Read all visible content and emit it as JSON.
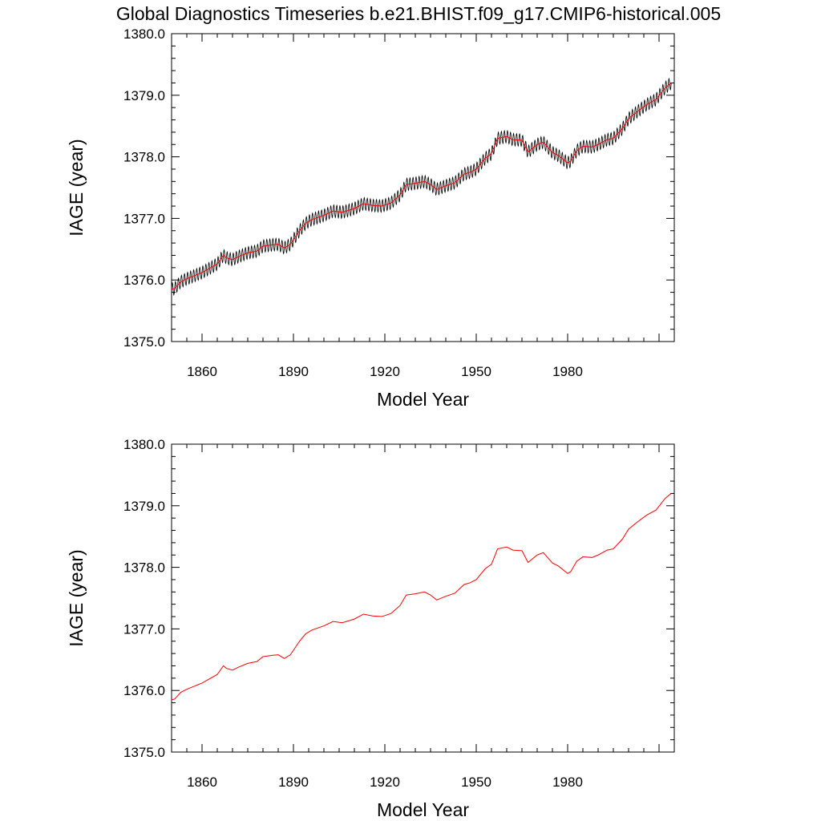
{
  "figure_title": "Global Diagnostics Timeseries b.e21.BHIST.f09_g17.CMIP6-historical.005",
  "colors": {
    "monthly": "#000000",
    "annual": "#ff0000",
    "axis": "#000000"
  },
  "chart_data": [
    {
      "type": "line",
      "panel": "top",
      "title": "",
      "xlabel": "Model Year",
      "ylabel": "IAGE (year)",
      "xlim": [
        1850,
        2015
      ],
      "ylim": [
        1375.0,
        1380.0
      ],
      "x_ticks": [
        1860,
        1890,
        1920,
        1950,
        1980
      ],
      "y_ticks": [
        "1375.0",
        "1376.0",
        "1377.0",
        "1378.0",
        "1379.0",
        "1380.0"
      ],
      "grid": false,
      "series": [
        {
          "style": "monthly",
          "color": "#000000",
          "seasonal_amplitude": 0.1,
          "x": [
            1850,
            1851,
            1853,
            1855,
            1860,
            1865,
            1867,
            1868,
            1870,
            1872,
            1875,
            1878,
            1880,
            1883,
            1885,
            1887,
            1889,
            1892,
            1894,
            1896,
            1900,
            1903,
            1906,
            1910,
            1913,
            1916,
            1919,
            1922,
            1925,
            1927,
            1930,
            1933,
            1935,
            1937,
            1940,
            1943,
            1946,
            1948,
            1950,
            1953,
            1955,
            1957,
            1960,
            1962,
            1965,
            1967,
            1970,
            1972,
            1975,
            1977,
            1980,
            1981,
            1983,
            1985,
            1988,
            1990,
            1993,
            1995,
            1998,
            2000,
            2003,
            2006,
            2009,
            2012,
            2014
          ],
          "y": [
            1375.85,
            1375.86,
            1375.97,
            1376.02,
            1376.12,
            1376.26,
            1376.4,
            1376.36,
            1376.33,
            1376.38,
            1376.44,
            1376.47,
            1376.55,
            1376.57,
            1376.58,
            1376.52,
            1376.58,
            1376.8,
            1376.92,
            1376.98,
            1377.05,
            1377.12,
            1377.1,
            1377.16,
            1377.24,
            1377.21,
            1377.2,
            1377.25,
            1377.38,
            1377.55,
            1377.57,
            1377.6,
            1377.55,
            1377.47,
            1377.53,
            1377.58,
            1377.72,
            1377.75,
            1377.8,
            1377.98,
            1378.05,
            1378.3,
            1378.33,
            1378.28,
            1378.27,
            1378.08,
            1378.2,
            1378.24,
            1378.07,
            1378.02,
            1377.9,
            1377.93,
            1378.1,
            1378.17,
            1378.16,
            1378.2,
            1378.28,
            1378.3,
            1378.46,
            1378.62,
            1378.74,
            1378.85,
            1378.93,
            1379.12,
            1379.2
          ]
        },
        {
          "style": "annual",
          "color": "#ff0000",
          "x": [
            1850,
            1851,
            1853,
            1855,
            1860,
            1865,
            1867,
            1868,
            1870,
            1872,
            1875,
            1878,
            1880,
            1883,
            1885,
            1887,
            1889,
            1892,
            1894,
            1896,
            1900,
            1903,
            1906,
            1910,
            1913,
            1916,
            1919,
            1922,
            1925,
            1927,
            1930,
            1933,
            1935,
            1937,
            1940,
            1943,
            1946,
            1948,
            1950,
            1953,
            1955,
            1957,
            1960,
            1962,
            1965,
            1967,
            1970,
            1972,
            1975,
            1977,
            1980,
            1981,
            1983,
            1985,
            1988,
            1990,
            1993,
            1995,
            1998,
            2000,
            2003,
            2006,
            2009,
            2012,
            2014
          ],
          "y": [
            1375.85,
            1375.86,
            1375.97,
            1376.02,
            1376.12,
            1376.26,
            1376.4,
            1376.36,
            1376.33,
            1376.38,
            1376.44,
            1376.47,
            1376.55,
            1376.57,
            1376.58,
            1376.52,
            1376.58,
            1376.8,
            1376.92,
            1376.98,
            1377.05,
            1377.12,
            1377.1,
            1377.16,
            1377.24,
            1377.21,
            1377.2,
            1377.25,
            1377.38,
            1377.55,
            1377.57,
            1377.6,
            1377.55,
            1377.47,
            1377.53,
            1377.58,
            1377.72,
            1377.75,
            1377.8,
            1377.98,
            1378.05,
            1378.3,
            1378.33,
            1378.28,
            1378.27,
            1378.08,
            1378.2,
            1378.24,
            1378.07,
            1378.02,
            1377.9,
            1377.93,
            1378.1,
            1378.17,
            1378.16,
            1378.2,
            1378.28,
            1378.3,
            1378.46,
            1378.62,
            1378.74,
            1378.85,
            1378.93,
            1379.12,
            1379.2
          ]
        }
      ]
    },
    {
      "type": "line",
      "panel": "bottom",
      "title": "",
      "xlabel": "Model Year",
      "ylabel": "IAGE (year)",
      "xlim": [
        1850,
        2015
      ],
      "ylim": [
        1375.0,
        1380.0
      ],
      "x_ticks": [
        1860,
        1890,
        1920,
        1950,
        1980
      ],
      "y_ticks": [
        "1375.0",
        "1376.0",
        "1377.0",
        "1378.0",
        "1379.0",
        "1380.0"
      ],
      "grid": false,
      "series": [
        {
          "style": "annual",
          "color": "#ff0000",
          "x": [
            1850,
            1851,
            1853,
            1855,
            1860,
            1865,
            1867,
            1868,
            1870,
            1872,
            1875,
            1878,
            1880,
            1883,
            1885,
            1887,
            1889,
            1892,
            1894,
            1896,
            1900,
            1903,
            1906,
            1910,
            1913,
            1916,
            1919,
            1922,
            1925,
            1927,
            1930,
            1933,
            1935,
            1937,
            1940,
            1943,
            1946,
            1948,
            1950,
            1953,
            1955,
            1957,
            1960,
            1962,
            1965,
            1967,
            1970,
            1972,
            1975,
            1977,
            1980,
            1981,
            1983,
            1985,
            1988,
            1990,
            1993,
            1995,
            1998,
            2000,
            2003,
            2006,
            2009,
            2012,
            2014
          ],
          "y": [
            1375.85,
            1375.86,
            1375.97,
            1376.02,
            1376.12,
            1376.26,
            1376.4,
            1376.36,
            1376.33,
            1376.38,
            1376.44,
            1376.47,
            1376.55,
            1376.57,
            1376.58,
            1376.52,
            1376.58,
            1376.8,
            1376.92,
            1376.98,
            1377.05,
            1377.12,
            1377.1,
            1377.16,
            1377.24,
            1377.21,
            1377.2,
            1377.25,
            1377.38,
            1377.55,
            1377.57,
            1377.6,
            1377.55,
            1377.47,
            1377.53,
            1377.58,
            1377.72,
            1377.75,
            1377.8,
            1377.98,
            1378.05,
            1378.3,
            1378.33,
            1378.28,
            1378.27,
            1378.08,
            1378.2,
            1378.24,
            1378.07,
            1378.02,
            1377.9,
            1377.93,
            1378.1,
            1378.17,
            1378.16,
            1378.2,
            1378.28,
            1378.3,
            1378.46,
            1378.62,
            1378.74,
            1378.85,
            1378.93,
            1379.12,
            1379.2
          ]
        }
      ]
    }
  ]
}
